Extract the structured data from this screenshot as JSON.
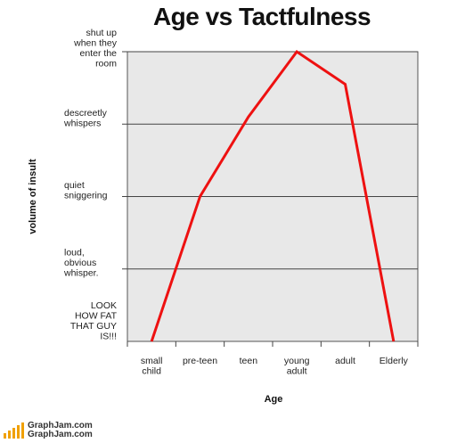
{
  "chart_data": {
    "type": "line",
    "title": "Age vs Tactfulness",
    "xlabel": "Age",
    "ylabel": "volume of insult",
    "categories": [
      "small\nchild",
      "pre-teen",
      "teen",
      "young\nadult",
      "adult",
      "Elderly"
    ],
    "y_levels": [
      "LOOK\nHOW FAT\nTHAT GUY\nIS!!!",
      "loud,\nobvious\nwhisper.",
      "quiet\nsniggering",
      "descreetly\nwhispers",
      "shut up\nwhen they\nenter the\nroom"
    ],
    "series": [
      {
        "color": "#ee1111",
        "points": [
          {
            "x": 0.5,
            "y": 0
          },
          {
            "x": 1.5,
            "y": 2
          },
          {
            "x": 2.5,
            "y": 3.1
          },
          {
            "x": 3.5,
            "y": 4
          },
          {
            "x": 4.5,
            "y": 3.55
          },
          {
            "x": 5.5,
            "y": 0
          }
        ]
      }
    ],
    "ylim": [
      0,
      4
    ],
    "xlim": [
      0,
      6
    ],
    "grid": true,
    "plot_background": "#e8e8e8"
  },
  "brand": {
    "line1": "GraphJam.com",
    "line2": "GraphJam.com"
  }
}
